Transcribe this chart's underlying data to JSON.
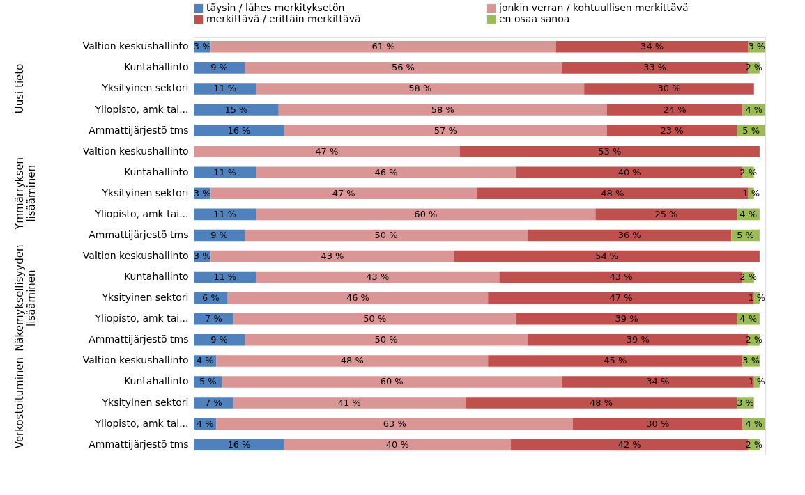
{
  "chart_data": {
    "type": "bar",
    "orientation": "horizontal",
    "stacked": true,
    "legend": "top",
    "grid": false,
    "tick_labels": "y",
    "xlim": [
      0,
      101
    ],
    "categories": [
      "Valtion keskushallinto",
      "Kuntahallinto",
      "Yksityinen sektori",
      "Yliopisto, amk tai...",
      "Ammattijärjestö tms",
      "Valtion keskushallinto",
      "Kuntahallinto",
      "Yksityinen sektori",
      "Yliopisto, amk tai...",
      "Ammattijärjestö tms",
      "Valtion keskushallinto",
      "Kuntahallinto",
      "Yksityinen sektori",
      "Yliopisto, amk tai...",
      "Ammattijärjestö tms",
      "Valtion keskushallinto",
      "Kuntahallinto",
      "Yksityinen sektori",
      "Yliopisto, amk tai...",
      "Ammattijärjestö tms"
    ],
    "annotations": [
      "Uusi tieto",
      "Ymmärryksen lisääminen",
      "Näkemyksellisyyden lisääminen",
      "Verkostoituminen"
    ],
    "series": [
      {
        "name": "täysin / lähes merkityksetön",
        "color": "#4f81bd",
        "values": [
          3,
          9,
          11,
          15,
          16,
          null,
          11,
          3,
          11,
          9,
          3,
          11,
          6,
          7,
          9,
          4,
          5,
          7,
          4,
          16
        ],
        "value_labels": [
          "3 %",
          "9 %",
          "11 %",
          "15 %",
          "16 %",
          null,
          "11 %",
          "3 %",
          "11 %",
          "9 %",
          "3 %",
          "11 %",
          "6 %",
          "7 %",
          "9 %",
          "4 %",
          "5 %",
          "7 %",
          "4 %",
          "16 %"
        ]
      },
      {
        "name": "jonkin verran  / kohtuullisen merkittävä",
        "color": "#d99694",
        "values": [
          61,
          56,
          58,
          58,
          57,
          47,
          46,
          47,
          60,
          50,
          43,
          43,
          46,
          50,
          50,
          48,
          60,
          41,
          63,
          40
        ],
        "value_labels": [
          "61 %",
          "56 %",
          "58 %",
          "58 %",
          "57 %",
          "47 %",
          "46 %",
          "47 %",
          "60 %",
          "50 %",
          "43 %",
          "43 %",
          "46 %",
          "50 %",
          "50 %",
          "48 %",
          "60 %",
          "41 %",
          "63 %",
          "40 %"
        ]
      },
      {
        "name": "merkittävä / erittäin merkittävä",
        "color": "#c0504d",
        "values": [
          34,
          33,
          30,
          24,
          23,
          53,
          40,
          48,
          25,
          36,
          54,
          43,
          47,
          39,
          39,
          45,
          34,
          48,
          30,
          42
        ],
        "value_labels": [
          "34 %",
          "33 %",
          "30 %",
          "24 %",
          "23 %",
          "53 %",
          "40 %",
          "48 %",
          "25 %",
          "36 %",
          "54 %",
          "43 %",
          "47 %",
          "39 %",
          "39 %",
          "45 %",
          "34 %",
          "48 %",
          "30 %",
          "42 %"
        ]
      },
      {
        "name": "en osaa sanoa",
        "color": "#9bbb59",
        "values": [
          3,
          2,
          null,
          4,
          5,
          null,
          2,
          1,
          4,
          5,
          null,
          2,
          1,
          4,
          2,
          3,
          1,
          3,
          4,
          2
        ],
        "value_labels": [
          "3 %",
          "2 %",
          null,
          "4 %",
          "5 %",
          null,
          "2 %",
          "1 %",
          "4 %",
          "5 %",
          null,
          "2 %",
          "1 %",
          "4 %",
          "2 %",
          "3 %",
          "1 %",
          "3 %",
          "4 %",
          "2 %"
        ]
      }
    ]
  }
}
